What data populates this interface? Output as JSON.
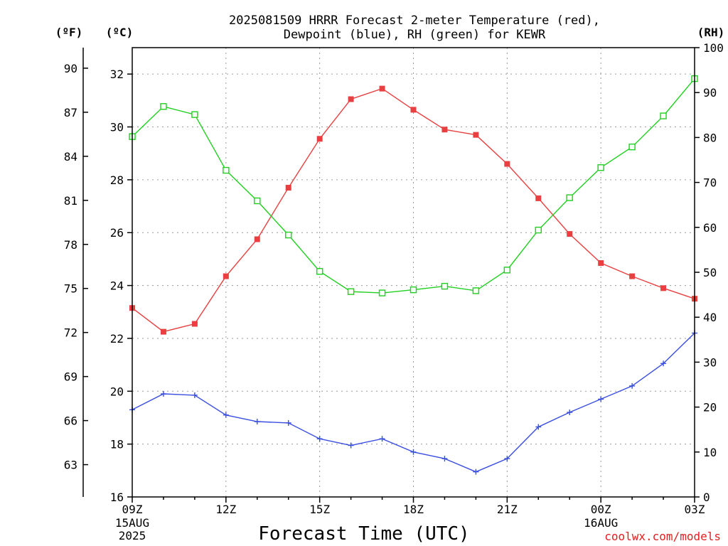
{
  "chart_data": {
    "type": "line",
    "title_line1": "2025081509 HRRR Forecast 2-meter Temperature (red),",
    "title_line2": "Dewpoint (blue), RH (green) for KEWR",
    "xlabel": "Forecast Time (UTC)",
    "credit": "coolwx.com/models",
    "left_unit_f": "(ºF)",
    "left_unit_c": "(ºC)",
    "right_unit": "(RH)",
    "x_tick_labels": [
      "09Z",
      "12Z",
      "15Z",
      "18Z",
      "21Z",
      "00Z",
      "03Z"
    ],
    "x_date_labels": [
      {
        "hour": 0,
        "lines": [
          "15AUG",
          "2025"
        ]
      },
      {
        "hour": 15,
        "lines": [
          "16AUG"
        ]
      }
    ],
    "x_hours": [
      0,
      1,
      2,
      3,
      4,
      5,
      6,
      7,
      8,
      9,
      10,
      11,
      12,
      13,
      14,
      15,
      16,
      17,
      18
    ],
    "x_range": [
      0,
      18
    ],
    "celsius_axis": {
      "range": [
        16,
        33
      ],
      "ticks": [
        16,
        18,
        20,
        22,
        24,
        26,
        28,
        30,
        32
      ]
    },
    "fahrenheit_axis": {
      "ticks": [
        63,
        66,
        69,
        72,
        75,
        78,
        81,
        84,
        87,
        90
      ]
    },
    "rh_axis": {
      "range": [
        0,
        100
      ],
      "ticks": [
        0,
        10,
        20,
        30,
        40,
        50,
        60,
        70,
        80,
        90,
        100
      ]
    },
    "grid": true,
    "colors": {
      "temperature": "#e84040",
      "dewpoint": "#3a4ee0",
      "rh": "#20d020"
    },
    "series": [
      {
        "name": "Temperature",
        "axis": "celsius",
        "marker": "filled-square",
        "values": [
          23.15,
          22.25,
          22.55,
          24.35,
          25.75,
          27.7,
          29.55,
          31.05,
          31.45,
          30.65,
          29.9,
          29.7,
          28.6,
          27.3,
          25.95,
          24.85,
          24.35,
          23.9,
          23.5
        ]
      },
      {
        "name": "Dewpoint",
        "axis": "celsius",
        "marker": "plus",
        "values": [
          19.3,
          19.9,
          19.85,
          19.1,
          18.85,
          18.8,
          18.2,
          17.95,
          18.2,
          17.7,
          17.45,
          16.95,
          17.45,
          18.65,
          19.2,
          19.7,
          20.2,
          21.05,
          22.2
        ]
      },
      {
        "name": "RH",
        "axis": "rh",
        "marker": "open-square",
        "values": [
          80.2,
          86.9,
          85.1,
          72.7,
          65.9,
          58.3,
          50.2,
          45.7,
          45.4,
          46.1,
          46.9,
          45.9,
          50.5,
          59.4,
          66.6,
          73.3,
          77.9,
          84.8,
          93.1
        ]
      }
    ]
  }
}
